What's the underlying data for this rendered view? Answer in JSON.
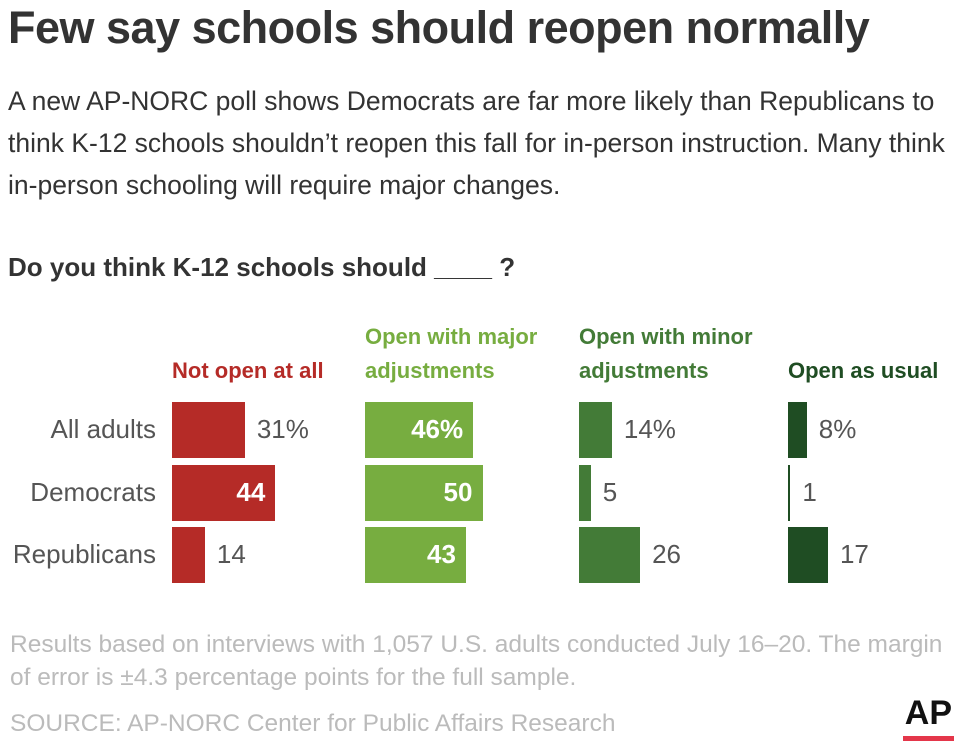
{
  "chart_data": {
    "type": "bar",
    "title": "Few say schools should reopen normally",
    "subtitle": "A new AP-NORC poll shows Democrats are far more likely than Republicans to think K-12 schools shouldn’t reopen this fall for in-person instruction. Many think in-person schooling will require major changes.",
    "question": "Do you think K-12 schools should ____ ?",
    "categories": [
      "All adults",
      "Democrats",
      "Republicans"
    ],
    "series": [
      {
        "name": "Not open at all",
        "color": "#b52b27",
        "values": [
          31,
          44,
          14
        ],
        "value_labels": [
          "31%",
          "44",
          "14"
        ]
      },
      {
        "name": "Open with major adjustments",
        "color": "#77ad40",
        "values": [
          46,
          50,
          43
        ],
        "value_labels": [
          "46%",
          "50",
          "43"
        ]
      },
      {
        "name": "Open with minor adjustments",
        "color": "#437b37",
        "values": [
          14,
          5,
          26
        ],
        "value_labels": [
          "14%",
          "5",
          "26"
        ]
      },
      {
        "name": "Open as usual",
        "color": "#1f4d23",
        "values": [
          8,
          1,
          17
        ],
        "value_labels": [
          "8%",
          "1",
          "17"
        ]
      }
    ],
    "note": "Results based on interviews with 1,057 U.S. adults conducted July 16–20. The margin of error is ±4.3 percentage points for the full sample.",
    "source": "SOURCE: AP-NORC Center for Public Affairs Research",
    "logo": "AP"
  }
}
